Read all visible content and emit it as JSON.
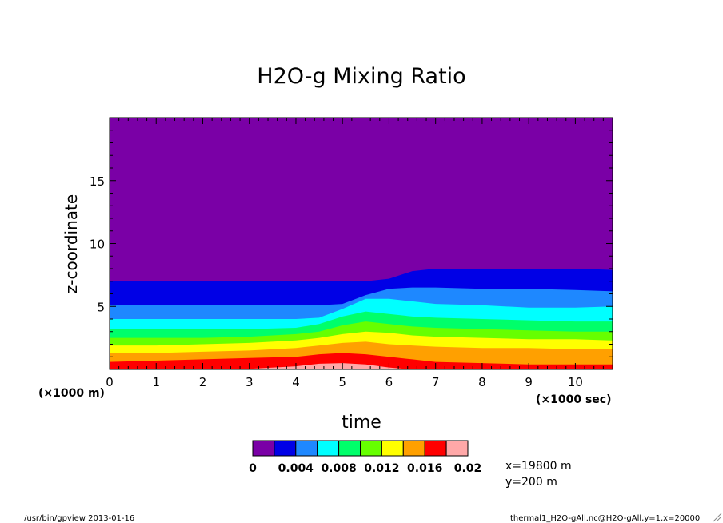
{
  "chart_data": {
    "type": "area",
    "title": "H2O-g Mixing Ratio",
    "xlabel": "time",
    "ylabel": "z-coordinate",
    "x_multiplier": "(×1000 sec)",
    "y_multiplier": "(×1000 m)",
    "xlim": [
      0,
      10.8
    ],
    "ylim": [
      0,
      20
    ],
    "x_ticks": [
      "0",
      "1",
      "2",
      "3",
      "4",
      "5",
      "6",
      "7",
      "8",
      "9",
      "10"
    ],
    "y_ticks": [
      "5",
      "10",
      "15"
    ],
    "x_tick_values": [
      0,
      1,
      2,
      3,
      4,
      5,
      6,
      7,
      8,
      9,
      10
    ],
    "y_tick_values": [
      5,
      10,
      15
    ],
    "x": [
      0,
      1,
      2,
      3,
      4,
      4.5,
      5,
      5.5,
      6,
      6.5,
      7,
      8,
      9,
      10,
      10.8
    ],
    "contour_levels": [
      0,
      0.002,
      0.004,
      0.006,
      0.008,
      0.01,
      0.012,
      0.014,
      0.016,
      0.018,
      0.02
    ],
    "level_colors": [
      "#7a00a6",
      "#0000e6",
      "#1e88ff",
      "#00ffff",
      "#00ff6a",
      "#66ff00",
      "#ffff00",
      "#ffa000",
      "#ff0000",
      "#ffa8a8"
    ],
    "contour_heights_km": [
      {
        "level": 0.002,
        "z": [
          7.0,
          7.0,
          7.0,
          7.0,
          7.0,
          7.0,
          7.0,
          7.0,
          7.2,
          7.8,
          8.0,
          8.0,
          8.0,
          8.0,
          7.9
        ]
      },
      {
        "level": 0.004,
        "z": [
          5.1,
          5.1,
          5.1,
          5.1,
          5.1,
          5.1,
          5.2,
          5.9,
          6.4,
          6.5,
          6.5,
          6.4,
          6.4,
          6.3,
          6.2
        ]
      },
      {
        "level": 0.006,
        "z": [
          4.0,
          4.0,
          4.0,
          4.0,
          4.0,
          4.1,
          4.8,
          5.6,
          5.6,
          5.4,
          5.2,
          5.1,
          4.9,
          4.9,
          5.0
        ]
      },
      {
        "level": 0.008,
        "z": [
          3.2,
          3.2,
          3.2,
          3.2,
          3.3,
          3.6,
          4.2,
          4.6,
          4.4,
          4.2,
          4.1,
          4.0,
          3.9,
          3.8,
          3.8
        ]
      },
      {
        "level": 0.01,
        "z": [
          2.5,
          2.5,
          2.5,
          2.6,
          2.8,
          3.0,
          3.5,
          3.8,
          3.6,
          3.4,
          3.3,
          3.2,
          3.1,
          3.0,
          3.0
        ]
      },
      {
        "level": 0.012,
        "z": [
          1.9,
          1.9,
          2.0,
          2.1,
          2.3,
          2.5,
          2.8,
          3.0,
          2.9,
          2.7,
          2.6,
          2.5,
          2.4,
          2.4,
          2.3
        ]
      },
      {
        "level": 0.014,
        "z": [
          1.3,
          1.3,
          1.4,
          1.5,
          1.7,
          1.9,
          2.1,
          2.2,
          2.0,
          1.9,
          1.8,
          1.7,
          1.7,
          1.6,
          1.6
        ]
      },
      {
        "level": 0.016,
        "z": [
          0.6,
          0.7,
          0.8,
          0.9,
          1.0,
          1.2,
          1.3,
          1.2,
          1.0,
          0.8,
          0.6,
          0.5,
          0.4,
          0.4,
          0.4
        ]
      },
      {
        "level": 0.018,
        "z": [
          0,
          0,
          0,
          0.05,
          0.25,
          0.45,
          0.5,
          0.4,
          0.15,
          0,
          0,
          0,
          0,
          0,
          0
        ]
      }
    ],
    "colorbar": {
      "labels": [
        "0",
        "0.004",
        "0.008",
        "0.012",
        "0.016",
        "0.02"
      ],
      "label_values": [
        0,
        0.004,
        0.008,
        0.012,
        0.016,
        0.02
      ]
    },
    "grid": false,
    "legend_position": "bottom-center"
  },
  "annotations": {
    "location_x": "x=19800 m",
    "location_y": "y=200 m",
    "footer_left": "/usr/bin/gpview  2013-01-16",
    "footer_right": "thermal1_H2O-gAll.nc@H2O-gAll,y=1,x=20000"
  }
}
